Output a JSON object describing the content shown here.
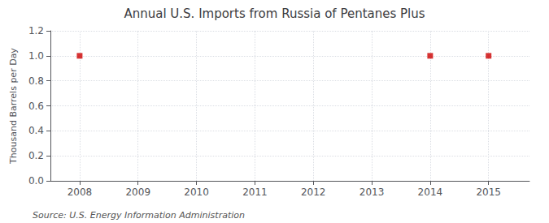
{
  "chart_data": {
    "type": "scatter",
    "title": "Annual U.S. Imports from Russia of Pentanes Plus",
    "ylabel": "Thousand Barrels per Day",
    "annotations": [
      "Source: U.S. Energy Information Administration"
    ],
    "x": [
      2008,
      2014,
      2015
    ],
    "values": [
      1.0,
      1.0,
      1.0
    ],
    "color": "#CC0000",
    "marker": "square",
    "xlim": [
      2007.5,
      2015.7
    ],
    "xticks": [
      2008,
      2009,
      2010,
      2011,
      2012,
      2013,
      2014,
      2015
    ],
    "ylim": [
      0.0,
      1.2
    ],
    "yticks": [
      {
        "value": 0.0,
        "label": "0.0"
      },
      0.2,
      0.4,
      0.6,
      0.8,
      {
        "value": 1.0,
        "label": "1.0"
      },
      1.2
    ],
    "grid": true
  }
}
